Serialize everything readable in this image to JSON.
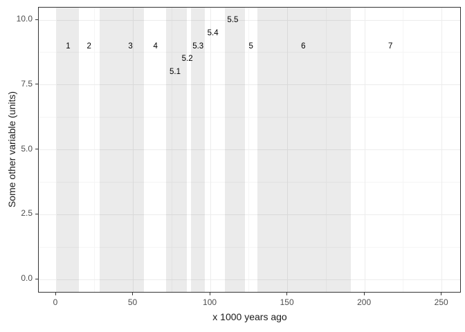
{
  "chart_data": {
    "type": "bar",
    "subtype": "vertical-span-highlights-with-text-annotations",
    "title": "",
    "xlabel": "x 1000 years ago",
    "ylabel": "Some other variable (units)",
    "xlim": [
      -12.5,
      262.5
    ],
    "ylim": [
      -0.5,
      10.5
    ],
    "x_ticks": [
      0,
      50,
      100,
      150,
      200,
      250
    ],
    "x_tick_labels": [
      "0",
      "50",
      "100",
      "150",
      "200",
      "250"
    ],
    "x_minor_ticks": [
      25,
      75,
      125,
      175,
      225
    ],
    "y_ticks": [
      0,
      2.5,
      5,
      7.5,
      10
    ],
    "y_tick_labels": [
      "0.0",
      "2.5",
      "5.0",
      "7.5",
      "10.0"
    ],
    "y_minor_ticks": [
      1.25,
      3.75,
      6.25,
      8.75
    ],
    "grid": true,
    "legend": "none",
    "shaded_bands_x": [
      {
        "start": 0.5,
        "end": 14.8
      },
      {
        "start": 28.4,
        "end": 57.0
      },
      {
        "start": 71.2,
        "end": 84.6
      },
      {
        "start": 87.6,
        "end": 96.4
      },
      {
        "start": 109.4,
        "end": 122.4
      },
      {
        "start": 130.5,
        "end": 191.0
      }
    ],
    "annotations": [
      {
        "text": "1",
        "x": 7.8,
        "y": 9.0
      },
      {
        "text": "2",
        "x": 21.4,
        "y": 9.0
      },
      {
        "text": "3",
        "x": 48.2,
        "y": 9.0
      },
      {
        "text": "4",
        "x": 64.4,
        "y": 9.0
      },
      {
        "text": "5.1",
        "x": 77.1,
        "y": 8.0
      },
      {
        "text": "5.2",
        "x": 85.0,
        "y": 8.5
      },
      {
        "text": "5.3",
        "x": 92.0,
        "y": 9.0
      },
      {
        "text": "5.4",
        "x": 101.6,
        "y": 9.5
      },
      {
        "text": "5.5",
        "x": 114.5,
        "y": 10.0
      },
      {
        "text": "5",
        "x": 126.3,
        "y": 9.0
      },
      {
        "text": "6",
        "x": 160.2,
        "y": 9.0
      },
      {
        "text": "7",
        "x": 216.6,
        "y": 9.0
      }
    ],
    "colors": {
      "background": "#ffffff",
      "band_overlay": "rgba(0,0,0,0.08)",
      "band_solid_equivalent": "#eaeaea",
      "grid_major": "#ececec",
      "grid_minor": "#f5f5f5",
      "panel_border": "#333333",
      "axis_tick_text": "#4d4d4d",
      "axis_title_text": "#1a1a1a",
      "annotation_text": "#000000"
    }
  }
}
